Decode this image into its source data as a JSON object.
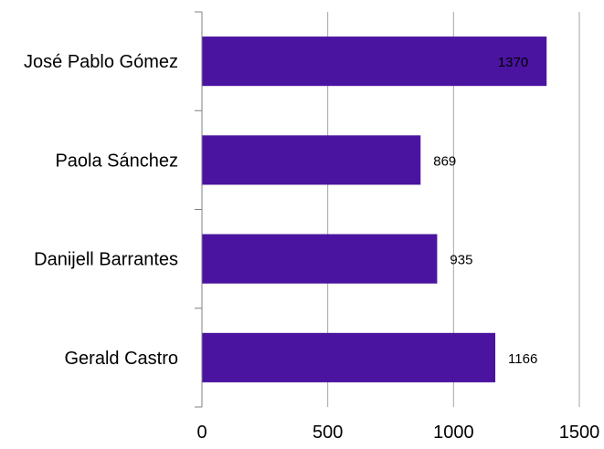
{
  "chart_data": {
    "type": "bar",
    "orientation": "horizontal",
    "categories": [
      "José Pablo Gómez",
      "Paola Sánchez",
      "Danijell Barrantes",
      "Gerald Castro"
    ],
    "values": [
      1370,
      869,
      935,
      1166
    ],
    "data_labels": [
      "1370",
      "869",
      "935",
      "1166"
    ],
    "xlim": [
      0,
      1500
    ],
    "x_ticks": [
      0,
      500,
      1000,
      1500
    ],
    "x_tick_labels": [
      "0",
      "500",
      "1000",
      "1500"
    ],
    "grid": true,
    "legend": "none",
    "bar_color": "#4a14a0"
  }
}
